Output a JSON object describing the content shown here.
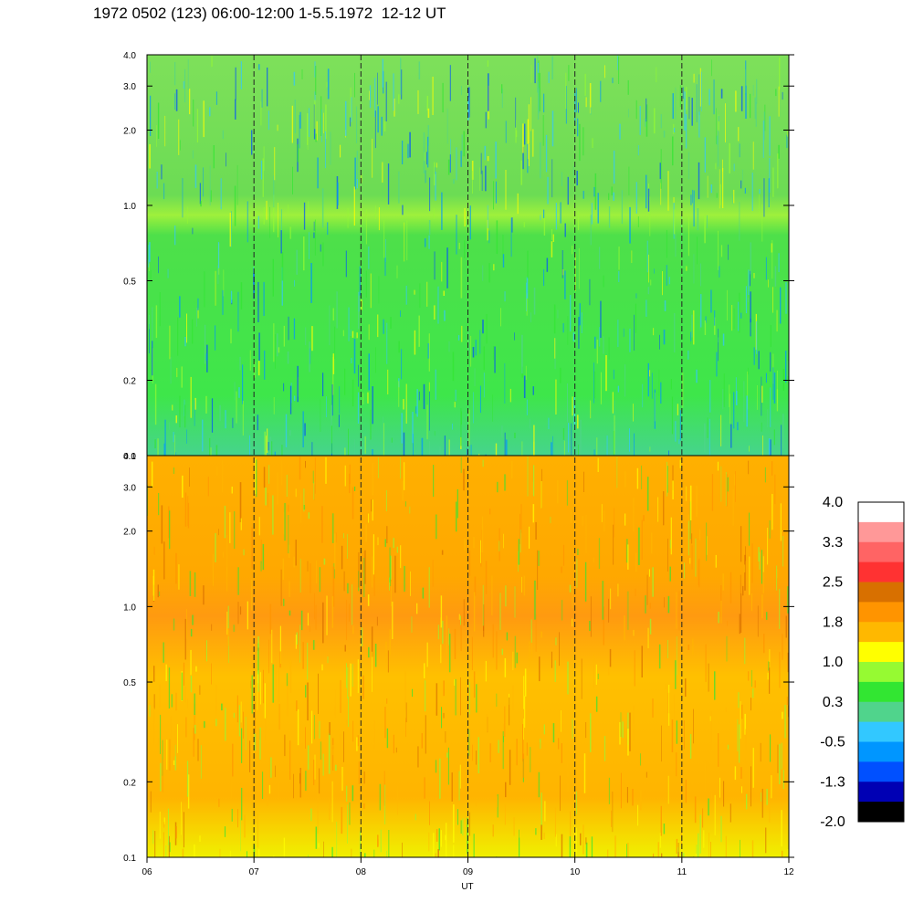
{
  "title": "1972 0502 (123) 06:00-12:00 1-5.5.1972  12-12 UT",
  "chart_data": {
    "type": "heatmap",
    "xlabel": "UT",
    "x_ticks": [
      "06",
      "07",
      "08",
      "09",
      "10",
      "11",
      "12"
    ],
    "x_range": [
      6,
      12
    ],
    "y_scale": "log",
    "y_range": [
      0.1,
      4.0
    ],
    "y_ticks": [
      "0.1",
      "0.2",
      "0.5",
      "1.0",
      "2.0",
      "3.0",
      "4.0"
    ],
    "y_tick_values": [
      0.1,
      0.2,
      0.5,
      1.0,
      2.0,
      3.0,
      4.0
    ],
    "panels": [
      {
        "name": "upper",
        "dominant_level": "0.3",
        "grid": "dashed vertical lines at each hour"
      },
      {
        "name": "lower",
        "dominant_level": "1.8",
        "grid": "dashed vertical lines at each hour"
      }
    ],
    "colorbar": {
      "labels": [
        "4.0",
        "3.3",
        "2.5",
        "1.8",
        "1.0",
        "0.3",
        "-0.5",
        "-1.3",
        "-2.0"
      ],
      "colors_top_to_bottom": [
        "#ffffff",
        "#ff9898",
        "#ff6464",
        "#ff3232",
        "#d87000",
        "#ff9400",
        "#ffb800",
        "#ffff00",
        "#96fa32",
        "#32e632",
        "#50d48c",
        "#32c8ff",
        "#0096ff",
        "#0050ff",
        "#0000b4",
        "#000000"
      ]
    }
  }
}
